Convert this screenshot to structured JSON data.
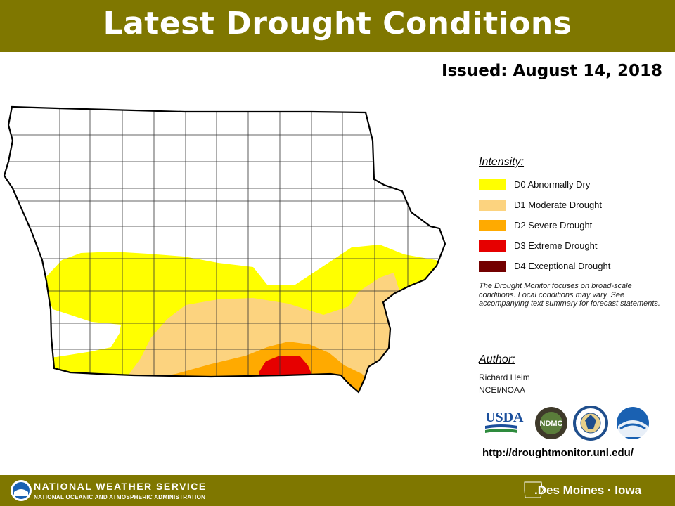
{
  "header": {
    "title": "Latest Drought Conditions"
  },
  "issued": "Issued: August 14, 2018",
  "legend": {
    "title": "Intensity:",
    "items": [
      {
        "label": "D0 Abnormally Dry",
        "color": "#ffff00"
      },
      {
        "label": "D1 Moderate Drought",
        "color": "#fcd37f"
      },
      {
        "label": "D2 Severe Drought",
        "color": "#ffaa00"
      },
      {
        "label": "D3 Extreme Drought",
        "color": "#e60000"
      },
      {
        "label": "D4 Exceptional Drought",
        "color": "#730000"
      }
    ],
    "note": "The Drought Monitor focuses on broad-scale conditions. Local conditions may vary. See accompanying text summary for forecast statements."
  },
  "author": {
    "title": "Author:",
    "name": "Richard Heim",
    "org": "NCEI/NOAA"
  },
  "logos": {
    "usda": "USDA",
    "ndmc": "NDMC"
  },
  "url": "http://droughtmonitor.unl.edu/",
  "footer": {
    "agency": "NATIONAL WEATHER SERVICE",
    "sub": "NATIONAL OCEANIC AND ATMOSPHERIC ADMINISTRATION",
    "office": ".Des Moines · Iowa"
  },
  "colors": {
    "banner": "#7f7700",
    "d0": "#ffff00",
    "d1": "#fcd37f",
    "d2": "#ffaa00",
    "d3": "#e60000",
    "d4": "#730000"
  }
}
